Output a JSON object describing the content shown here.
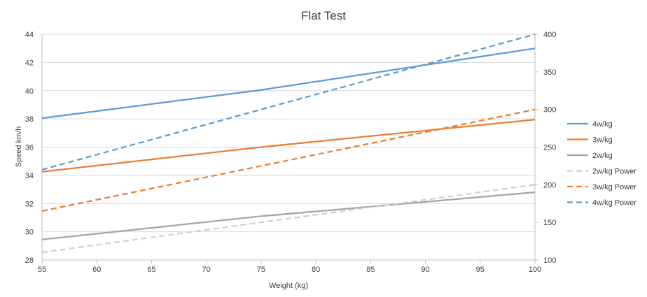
{
  "chart_data": {
    "type": "line",
    "title": "Flat Test",
    "xlabel": "Weight (kg)",
    "ylabel": "Speed km/h",
    "y2label": "",
    "xlim": [
      55,
      100
    ],
    "ylim": [
      28,
      44
    ],
    "y2lim": [
      100,
      400
    ],
    "x_ticks": [
      55,
      60,
      65,
      70,
      75,
      80,
      85,
      90,
      95,
      100
    ],
    "y_ticks": [
      28,
      30,
      32,
      34,
      36,
      38,
      40,
      42,
      44
    ],
    "y2_ticks": [
      100,
      150,
      200,
      250,
      300,
      350,
      400
    ],
    "grid": "horizontal",
    "legend_position": "right",
    "series": [
      {
        "name": "4w/kg",
        "axis": "left",
        "style": "solid",
        "color": "#5b9bd5",
        "x": [
          55,
          75,
          100
        ],
        "values": [
          38.05,
          40.05,
          43.0
        ]
      },
      {
        "name": "3w/kg",
        "axis": "left",
        "style": "solid",
        "color": "#ed7d31",
        "x": [
          55,
          75,
          100
        ],
        "values": [
          34.25,
          36.0,
          37.95
        ]
      },
      {
        "name": "2w/kg",
        "axis": "left",
        "style": "solid",
        "color": "#a5a5a5",
        "x": [
          55,
          75,
          100
        ],
        "values": [
          29.45,
          31.1,
          32.8
        ]
      },
      {
        "name": "2w/kg Power",
        "axis": "right",
        "style": "dashed",
        "color": "#cfcfcf",
        "x": [
          55,
          100
        ],
        "values": [
          110,
          200
        ]
      },
      {
        "name": "3w/kg Power",
        "axis": "right",
        "style": "dashed",
        "color": "#ed7d31",
        "x": [
          55,
          100
        ],
        "values": [
          165,
          300
        ]
      },
      {
        "name": "4w/kg Power",
        "axis": "right",
        "style": "dashed",
        "color": "#5b9bd5",
        "x": [
          55,
          100
        ],
        "values": [
          220,
          400
        ]
      }
    ]
  }
}
